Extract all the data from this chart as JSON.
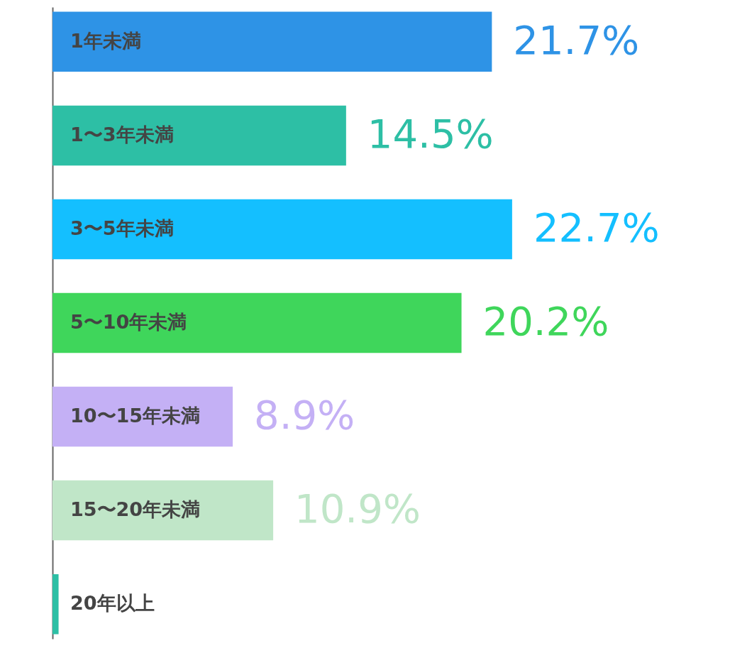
{
  "chart_data": {
    "type": "bar",
    "orientation": "horizontal",
    "categories": [
      "1年未満",
      "1〜3年未満",
      "3〜5年未満",
      "5〜10年未満",
      "10〜15年未満",
      "15〜20年未満",
      "20年以上"
    ],
    "values": [
      21.7,
      14.5,
      22.7,
      20.2,
      8.9,
      10.9,
      0.3
    ],
    "colors": [
      "#2e93e6",
      "#2dbfa5",
      "#14bfff",
      "#3fd65b",
      "#c4b0f5",
      "#c0e6c8",
      "#2dbfa5"
    ],
    "value_labels": [
      "21.7%",
      "14.5%",
      "22.7%",
      "20.2%",
      "8.9%",
      "10.9%",
      null
    ],
    "tick_labels": false
  }
}
